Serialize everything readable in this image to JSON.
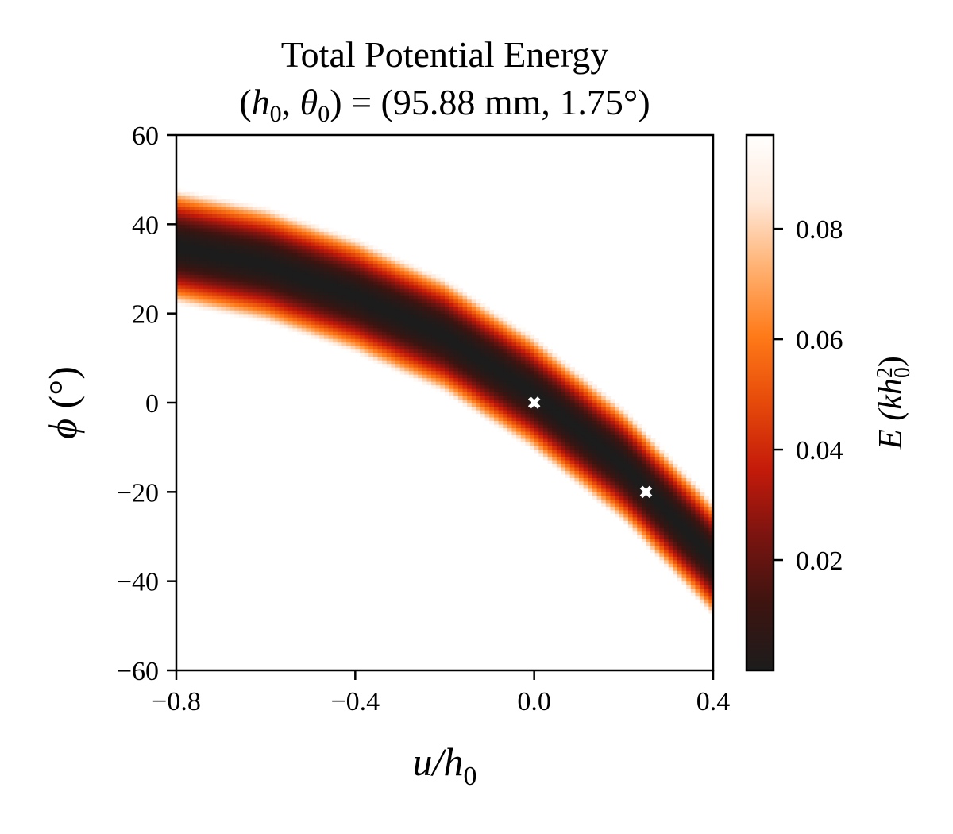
{
  "chart_data": {
    "type": "heatmap",
    "title": "Total Potential Energy",
    "subtitle": "(h₀, θ₀) = (95.88 mm, 1.75°)",
    "subtitle_parts": {
      "lhs_open": "(",
      "h_sym": "h",
      "h_sub": "0",
      "comma": ", ",
      "theta_sym": "θ",
      "theta_sub": "0",
      "rhs": ") = (95.88 mm, 1.75°)"
    },
    "xlabel": "u/h₀",
    "xlabel_parts": {
      "main": "u/h",
      "sub": "0"
    },
    "ylabel": "ϕ (°)",
    "ylabel_parts": {
      "sym": "ϕ",
      "unit": " (°)"
    },
    "colorbar_label": "E (kh₀²)",
    "colorbar_label_parts": {
      "open": "E (kh",
      "sub": "0",
      "sup": "2",
      "close": ")"
    },
    "xlim": [
      -0.8,
      0.4
    ],
    "ylim": [
      -60,
      60
    ],
    "x_ticks": [
      -0.8,
      -0.4,
      0.0,
      0.4
    ],
    "x_tick_labels": [
      "−0.8",
      "−0.4",
      "0.0",
      "0.4"
    ],
    "y_ticks": [
      60,
      40,
      20,
      0,
      -20,
      -40,
      -60
    ],
    "y_tick_labels": [
      "60",
      "40",
      "20",
      "0",
      "−20",
      "−40",
      "−60"
    ],
    "colorbar_range": [
      0.0,
      0.097
    ],
    "colorbar_ticks": [
      0.08,
      0.06,
      0.04,
      0.02
    ],
    "colorbar_tick_labels": [
      "0.08",
      "0.06",
      "0.04",
      "0.02"
    ],
    "colormap": [
      "#1c1c1c",
      "#3d1410",
      "#7a1410",
      "#c41a0a",
      "#e64a0a",
      "#ff7a18",
      "#ffb070",
      "#ffe8d8",
      "#ffffff"
    ],
    "valley": {
      "description": "low-energy band; centre phi (deg) as function of u/h0",
      "center_points": [
        {
          "x": -0.8,
          "y": 35
        },
        {
          "x": -0.6,
          "y": 31
        },
        {
          "x": -0.4,
          "y": 24
        },
        {
          "x": -0.2,
          "y": 15
        },
        {
          "x": 0.0,
          "y": 2
        },
        {
          "x": 0.2,
          "y": -14
        },
        {
          "x": 0.4,
          "y": -35
        }
      ],
      "half_width_deg": 13
    },
    "markers": [
      {
        "x": 0.0,
        "y": 0,
        "symbol": "x",
        "color": "#ffffff"
      },
      {
        "x": 0.25,
        "y": -20,
        "symbol": "x",
        "color": "#ffffff"
      }
    ]
  }
}
